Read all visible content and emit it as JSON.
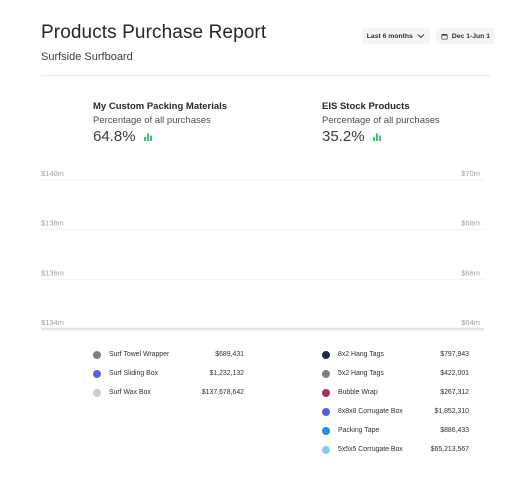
{
  "header": {
    "title": "Products Purchase Report",
    "subtitle": "Surfside Surfboard",
    "range_label": "Last 6 months",
    "date_label": "Dec 1-Jun 1"
  },
  "kpis": [
    {
      "title": "My Custom Packing Materials",
      "subtitle": "Percentage of all purchases",
      "value": "64.8%",
      "icon": "bar-chart-icon",
      "icon_color": "#3ec46d"
    },
    {
      "title": "EIS Stock Products",
      "subtitle": "Percentage of all purchases",
      "value": "35.2%",
      "icon": "bar-chart-icon",
      "icon_color": "#3ec46d"
    }
  ],
  "chart_data": {
    "type": "bar",
    "y_left_ticks": [
      "$140m",
      "$138m",
      "$136m",
      "$134m"
    ],
    "y_right_ticks": [
      "$70m",
      "$68m",
      "$66m",
      "$64m"
    ],
    "y_left_range": [
      134,
      140
    ],
    "y_right_range": [
      64,
      70
    ],
    "grid": true,
    "categories": [],
    "series": []
  },
  "legend_left": [
    {
      "name": "Surf Towel Wrapper",
      "value": "$689,431",
      "color": "#7b7f8b"
    },
    {
      "name": "Surf Sliding Box",
      "value": "$1,232,132",
      "color": "#5563d6"
    },
    {
      "name": "Surf Wax Box",
      "value": "$137,678,642",
      "color": "#c9ccd6"
    }
  ],
  "legend_right": [
    {
      "name": "8x2 Hang Tags",
      "value": "$797,943",
      "color": "#1d2a4a"
    },
    {
      "name": "5x2 Hang Tags",
      "value": "$422,001",
      "color": "#7b7f8b"
    },
    {
      "name": "Bubble Wrap",
      "value": "$267,312",
      "color": "#a8325e"
    },
    {
      "name": "8x8x8 Corrugate Box",
      "value": "$1,852,310",
      "color": "#5563d6"
    },
    {
      "name": "Packing Tape",
      "value": "$886,433",
      "color": "#1e8fe0"
    },
    {
      "name": "5x5x5 Corrugate Box",
      "value": "$65,213,567",
      "color": "#7fd0f5"
    }
  ]
}
